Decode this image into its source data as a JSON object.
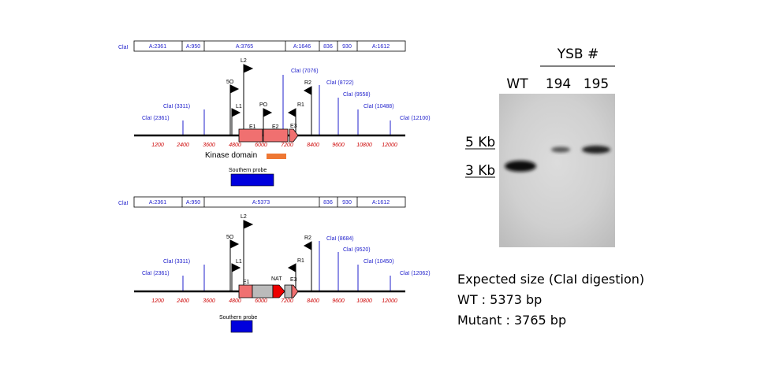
{
  "panel_top": {
    "clai_label": "ClaI",
    "segments": [
      "A:2361",
      "A:950",
      "A:3765",
      "A:1646",
      "836",
      "930",
      "A:1612"
    ],
    "sites": [
      "ClaI (2361)",
      "ClaI (3311)",
      "ClaI (7076)",
      "ClaI (8722)",
      "ClaI (9558)",
      "ClaI (10488)",
      "ClaI (12100)"
    ],
    "primers": [
      "L2",
      "5O",
      "L1",
      "PO",
      "R2",
      "R1"
    ],
    "exons": [
      "E1",
      "E2",
      "E3"
    ],
    "ticks": [
      "1200",
      "2400",
      "3600",
      "4800",
      "6000",
      "7200",
      "8400",
      "9600",
      "10800",
      "12000"
    ],
    "domain_label": "Kinase domain",
    "probe_label": "Southern probe"
  },
  "panel_bottom": {
    "clai_label": "ClaI",
    "segments": [
      "A:2361",
      "A:950",
      "A:5373",
      "836",
      "930",
      "A:1612"
    ],
    "sites": [
      "ClaI (2361)",
      "ClaI (3311)",
      "ClaI (8684)",
      "ClaI (9520)",
      "ClaI (10450)",
      "ClaI (12062)"
    ],
    "primers": [
      "L2",
      "5O",
      "L1",
      "R2",
      "R1"
    ],
    "exons": [
      "E1",
      "NAT",
      "E3"
    ],
    "ticks": [
      "1200",
      "2400",
      "3600",
      "4800",
      "6000",
      "7200",
      "8400",
      "9600",
      "10800",
      "12000"
    ],
    "probe_label": "Southern probe"
  },
  "blot": {
    "group_label": "YSB #",
    "lanes": [
      "WT",
      "194",
      "195"
    ],
    "markers": [
      "5 Kb",
      "3 Kb"
    ]
  },
  "expected": {
    "line1": "Expected size (ClaI digestion)",
    "line2": "WT : 5373 bp",
    "line3": "Mutant : 3765  bp"
  },
  "colors": {
    "exon": "#f07070",
    "nat": "#ee0000",
    "probe": "#0000dd",
    "domain": "#ee7733",
    "site_line": "#2222cc",
    "tick_text": "#cc0000",
    "gray_box": "#bbbbbb"
  }
}
